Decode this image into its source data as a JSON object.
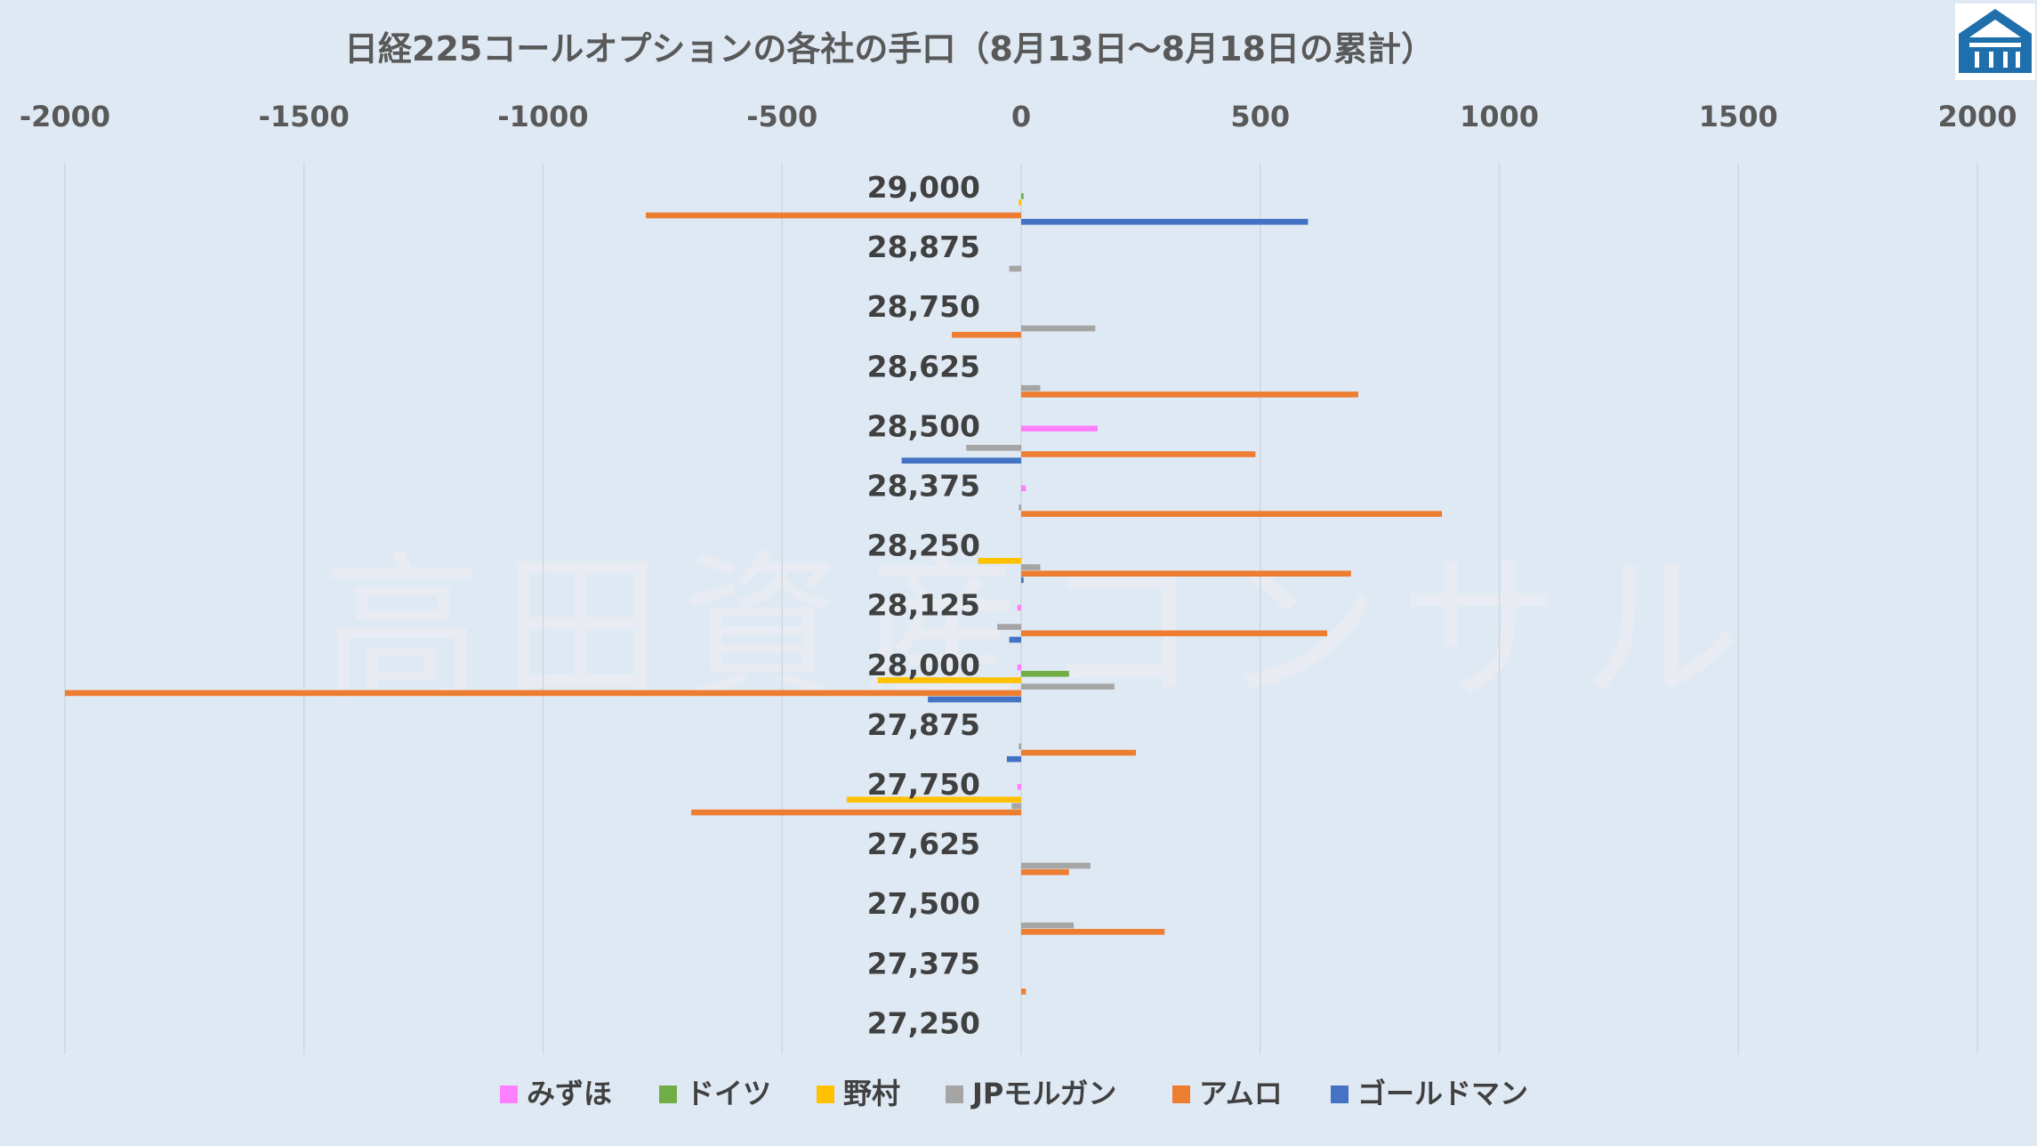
{
  "chart_data": {
    "type": "bar",
    "orientation": "horizontal",
    "title": "日経225コールオプションの各社の手口（8月13日～8月18日の累計）",
    "xlim": [
      -2000,
      2000
    ],
    "x_ticks": [
      -2000,
      -1500,
      -1000,
      -500,
      0,
      500,
      1000,
      1500,
      2000
    ],
    "x_tick_labels": [
      "-2000",
      "-1500",
      "-1000",
      "-500",
      "0",
      "500",
      "1000",
      "1500",
      "2000"
    ],
    "x_axis_position": "top",
    "grid": true,
    "legend_position": "bottom",
    "categories": [
      "29,000",
      "28,875",
      "28,750",
      "28,625",
      "28,500",
      "28,375",
      "28,250",
      "28,125",
      "28,000",
      "27,875",
      "27,750",
      "27,625",
      "27,500",
      "27,375",
      "27,250"
    ],
    "series": [
      {
        "name": "みずほ",
        "color": "#ff80ff",
        "values": [
          0,
          0,
          0,
          0,
          160,
          10,
          0,
          -8,
          -8,
          0,
          -8,
          0,
          0,
          0,
          0
        ]
      },
      {
        "name": "ドイツ",
        "color": "#70ad47",
        "values": [
          5,
          0,
          0,
          0,
          0,
          0,
          0,
          0,
          100,
          0,
          0,
          0,
          0,
          0,
          0
        ]
      },
      {
        "name": "野村",
        "color": "#ffc000",
        "values": [
          -5,
          0,
          0,
          0,
          0,
          0,
          -90,
          0,
          -300,
          0,
          -365,
          0,
          0,
          0,
          0
        ]
      },
      {
        "name": "JPモルガン",
        "color": "#a5a5a5",
        "values": [
          0,
          -25,
          155,
          40,
          -115,
          -5,
          40,
          -50,
          195,
          -5,
          -20,
          145,
          110,
          0,
          0
        ]
      },
      {
        "name": "アムロ",
        "color": "#ed7d31",
        "values": [
          -785,
          0,
          -145,
          705,
          490,
          880,
          690,
          640,
          -2000,
          240,
          -690,
          100,
          300,
          10,
          0
        ]
      },
      {
        "name": "ゴールドマン",
        "color": "#4472c4",
        "values": [
          600,
          0,
          0,
          0,
          -250,
          0,
          5,
          -25,
          -195,
          -30,
          0,
          0,
          0,
          0,
          0
        ]
      }
    ]
  },
  "watermark": "高田資産コンサル",
  "logo": {
    "label": "logo",
    "color": "#1f6fad"
  }
}
